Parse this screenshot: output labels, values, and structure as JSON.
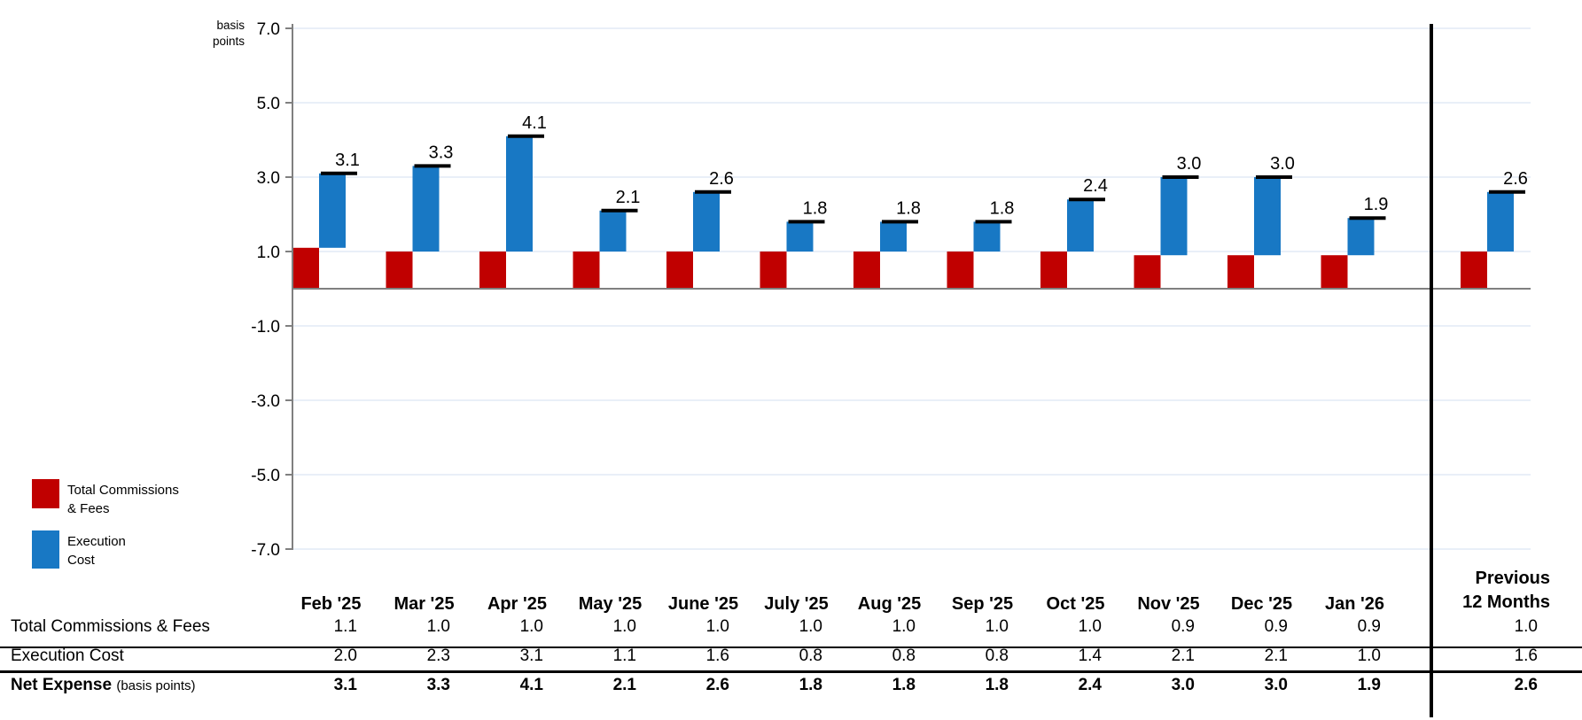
{
  "chart_data": {
    "type": "bar",
    "subtype": "stacked-column-with-net-markers",
    "title": "",
    "ylabel_lines": [
      "basis",
      "points"
    ],
    "ylim": [
      -7.0,
      7.0
    ],
    "yticks": [
      7.0,
      5.0,
      3.0,
      1.0,
      -1.0,
      -3.0,
      -5.0,
      -7.0
    ],
    "grid": true,
    "categories": [
      "Feb '25",
      "Mar '25",
      "Apr '25",
      "May '25",
      "June '25",
      "July '25",
      "Aug '25",
      "Sep '25",
      "Oct '25",
      "Nov '25",
      "Dec '25",
      "Jan '26"
    ],
    "summary_label_lines": [
      "Previous",
      "12 Months"
    ],
    "series": [
      {
        "name": "Total Commissions & Fees",
        "color": "#C00000",
        "values": [
          1.1,
          1.0,
          1.0,
          1.0,
          1.0,
          1.0,
          1.0,
          1.0,
          1.0,
          0.9,
          0.9,
          0.9
        ],
        "summary": 1.0
      },
      {
        "name": "Execution Cost",
        "color": "#1878C4",
        "values": [
          2.0,
          2.3,
          3.1,
          1.1,
          1.6,
          0.8,
          0.8,
          0.8,
          1.4,
          2.1,
          2.1,
          1.0
        ],
        "summary": 1.6
      }
    ],
    "net": {
      "name": "Net Expense",
      "suffix": "(basis points)",
      "values": [
        3.1,
        3.3,
        4.1,
        2.1,
        2.6,
        1.8,
        1.8,
        1.8,
        2.4,
        3.0,
        3.0,
        1.9
      ],
      "summary": 2.6
    },
    "net_marker_color": "#000000",
    "gridline_color": "#E9EFF8",
    "zero_line_color": "#808080",
    "axis_color": "#808080",
    "separator_color": "#000000"
  },
  "legend": {
    "items": [
      {
        "label_lines": [
          "Total Commissions",
          "& Fees"
        ],
        "color": "#C00000"
      },
      {
        "label_lines": [
          "Execution",
          "Cost"
        ],
        "color": "#1878C4"
      }
    ]
  }
}
